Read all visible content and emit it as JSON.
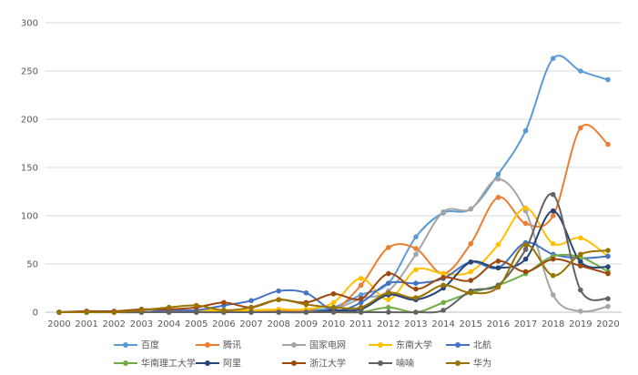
{
  "chart_data": {
    "type": "line",
    "title": "",
    "xlabel": "",
    "ylabel": "",
    "ylim": [
      0,
      300
    ],
    "yticks": [
      0,
      50,
      100,
      150,
      200,
      250,
      300
    ],
    "grid": true,
    "legend_position": "bottom",
    "smooth": true,
    "categories": [
      "2000",
      "2001",
      "2002",
      "2003",
      "2004",
      "2005",
      "2006",
      "2007",
      "2008",
      "2009",
      "2010",
      "2011",
      "2012",
      "2013",
      "2014",
      "2015",
      "2016",
      "2017",
      "2018",
      "2019",
      "2020"
    ],
    "series": [
      {
        "name": "百度",
        "color": "#5b9bd5",
        "values": [
          0,
          0,
          0,
          0,
          0,
          0,
          0,
          2,
          2,
          2,
          5,
          18,
          30,
          78,
          103,
          107,
          143,
          188,
          263,
          250,
          241
        ]
      },
      {
        "name": "腾讯",
        "color": "#ed7d31",
        "values": [
          0,
          1,
          0,
          0,
          1,
          2,
          2,
          2,
          2,
          2,
          2,
          28,
          67,
          66,
          40,
          71,
          119,
          92,
          100,
          191,
          174
        ]
      },
      {
        "name": "国家电网",
        "color": "#a5a5a5",
        "values": [
          0,
          0,
          0,
          0,
          0,
          0,
          0,
          0,
          0,
          0,
          3,
          14,
          22,
          60,
          104,
          107,
          138,
          105,
          18,
          1,
          6
        ]
      },
      {
        "name": "东南大学",
        "color": "#ffc000",
        "values": [
          0,
          0,
          0,
          0,
          1,
          2,
          2,
          2,
          3,
          3,
          10,
          35,
          13,
          44,
          40,
          42,
          70,
          108,
          71,
          77,
          58
        ]
      },
      {
        "name": "北航",
        "color": "#4472c4",
        "values": [
          0,
          0,
          0,
          0,
          2,
          2,
          7,
          12,
          22,
          20,
          2,
          10,
          30,
          30,
          35,
          52,
          46,
          72,
          60,
          56,
          58
        ]
      },
      {
        "name": "华南理工大学",
        "color": "#70ad47",
        "values": [
          0,
          0,
          0,
          0,
          0,
          0,
          0,
          0,
          0,
          0,
          0,
          0,
          5,
          0,
          10,
          20,
          28,
          40,
          58,
          57,
          42
        ]
      },
      {
        "name": "阿里",
        "color": "#264478",
        "values": [
          0,
          0,
          0,
          0,
          0,
          0,
          0,
          0,
          0,
          0,
          2,
          3,
          18,
          13,
          25,
          52,
          46,
          55,
          105,
          52,
          47
        ]
      },
      {
        "name": "浙江大学",
        "color": "#9e480e",
        "values": [
          0,
          1,
          1,
          3,
          3,
          5,
          10,
          5,
          13,
          10,
          19,
          14,
          40,
          24,
          36,
          33,
          53,
          42,
          55,
          48,
          40
        ]
      },
      {
        "name": "喃喃",
        "color": "#636363",
        "values": [
          0,
          0,
          0,
          0,
          0,
          0,
          0,
          0,
          0,
          0,
          0,
          0,
          0,
          0,
          2,
          22,
          28,
          65,
          122,
          23,
          14
        ]
      },
      {
        "name": "华为",
        "color": "#997300",
        "values": [
          0,
          0,
          0,
          2,
          5,
          7,
          2,
          5,
          13,
          8,
          5,
          5,
          20,
          15,
          28,
          20,
          26,
          70,
          38,
          60,
          64
        ]
      }
    ]
  }
}
